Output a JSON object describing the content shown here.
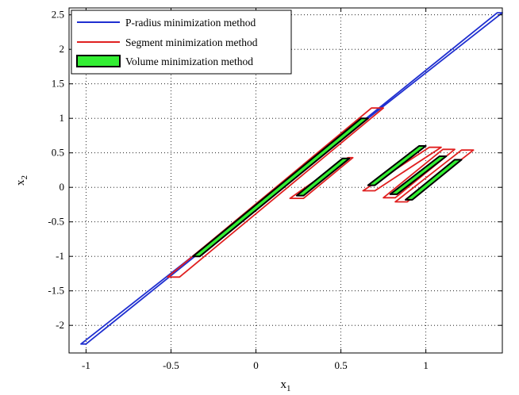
{
  "chart_data": {
    "type": "line",
    "title": "",
    "xlabel": "x",
    "xlabel_sub": "1",
    "ylabel": "x",
    "ylabel_sub": "2",
    "xlim": [
      -1.1,
      1.45
    ],
    "ylim": [
      -2.4,
      2.6
    ],
    "xticks": [
      -1,
      -0.5,
      0,
      0.5,
      1
    ],
    "xtick_labels": [
      "-1",
      "-0.5",
      "0",
      "0.5",
      "1"
    ],
    "yticks": [
      -2,
      -1.5,
      -1,
      -0.5,
      0,
      0.5,
      1,
      1.5,
      2,
      2.5
    ],
    "ytick_labels": [
      "-2",
      "-1.5",
      "-1",
      "-0.5",
      "0",
      "0.5",
      "1",
      "1.5",
      "2",
      "2.5"
    ],
    "grid": true,
    "legend_position": "top-left",
    "series": [
      {
        "name": "P-radius minimization method",
        "kind": "outline",
        "color": "#1f2fd0",
        "polygons": [
          {
            "x": [
              -1.03,
              -1.0,
              1.42,
              1.45
            ],
            "y": [
              -2.27,
              -2.27,
              2.53,
              2.53
            ]
          }
        ]
      },
      {
        "name": "Segment minimization method",
        "kind": "outline",
        "color": "#e02020",
        "polygons": [
          {
            "x": [
              -0.52,
              -0.45,
              0.75,
              0.68
            ],
            "y": [
              -1.3,
              -1.3,
              1.15,
              1.15
            ]
          },
          {
            "x": [
              0.2,
              0.28,
              0.57,
              0.54
            ],
            "y": [
              -0.16,
              -0.16,
              0.43,
              0.43
            ]
          },
          {
            "x": [
              0.63,
              0.7,
              1.09,
              1.02
            ],
            "y": [
              -0.05,
              -0.05,
              0.58,
              0.58
            ]
          },
          {
            "x": [
              0.75,
              0.82,
              1.17,
              1.1
            ],
            "y": [
              -0.15,
              -0.15,
              0.55,
              0.55
            ]
          },
          {
            "x": [
              0.82,
              0.89,
              1.28,
              1.21
            ],
            "y": [
              -0.21,
              -0.21,
              0.54,
              0.54
            ]
          }
        ]
      },
      {
        "name": "Volume minimization method",
        "kind": "filled",
        "color": "#000000",
        "fill": "#33ee33",
        "polygons": [
          {
            "x": [
              -0.37,
              -0.33,
              0.66,
              0.62
            ],
            "y": [
              -1.0,
              -1.0,
              1.0,
              1.0
            ]
          },
          {
            "x": [
              0.24,
              0.28,
              0.55,
              0.51
            ],
            "y": [
              -0.12,
              -0.12,
              0.42,
              0.42
            ]
          },
          {
            "x": [
              0.66,
              0.7,
              1.0,
              0.96
            ],
            "y": [
              0.03,
              0.03,
              0.6,
              0.6
            ]
          },
          {
            "x": [
              0.79,
              0.83,
              1.12,
              1.08
            ],
            "y": [
              -0.1,
              -0.1,
              0.45,
              0.45
            ]
          },
          {
            "x": [
              0.88,
              0.92,
              1.21,
              1.17
            ],
            "y": [
              -0.18,
              -0.18,
              0.4,
              0.4
            ]
          }
        ]
      }
    ]
  }
}
